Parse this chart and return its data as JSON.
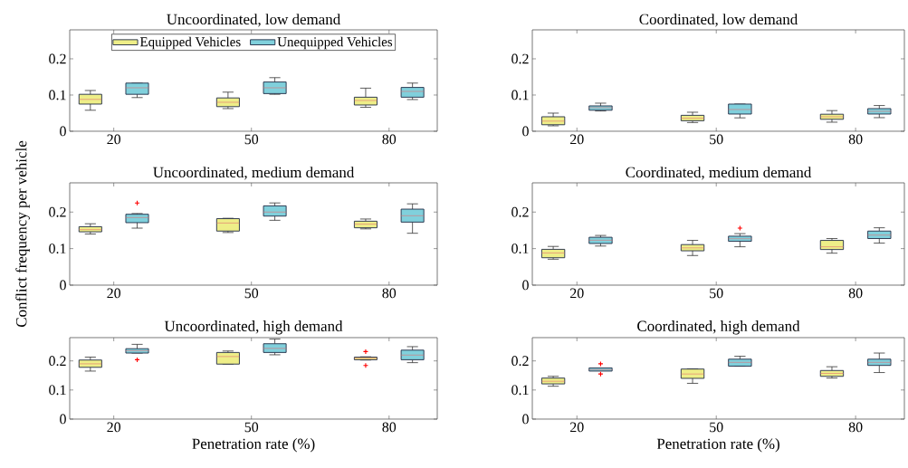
{
  "chart_data": [
    {
      "type": "box",
      "title": "Uncoordinated, low demand",
      "categories": [
        "20",
        "50",
        "80"
      ],
      "ylim": [
        0,
        0.28
      ],
      "yticks": [
        0,
        0.1,
        0.2
      ],
      "legend": "top",
      "series": [
        {
          "name": "Equipped Vehicles",
          "color": "#eeee88",
          "boxes": [
            {
              "low": 0.058,
              "q1": 0.075,
              "median": 0.088,
              "q3": 0.102,
              "high": 0.1125
            },
            {
              "low": 0.0625,
              "q1": 0.068,
              "median": 0.08,
              "q3": 0.092,
              "high": 0.108
            },
            {
              "low": 0.066,
              "q1": 0.0725,
              "median": 0.085,
              "q3": 0.094,
              "high": 0.119
            }
          ]
        },
        {
          "name": "Unequipped Vehicles",
          "color": "#80d0dc",
          "boxes": [
            {
              "low": 0.093,
              "q1": 0.102,
              "median": 0.12,
              "q3": 0.133,
              "high": 0.133
            },
            {
              "low": 0.102,
              "q1": 0.104,
              "median": 0.12,
              "q3": 0.136,
              "high": 0.148
            },
            {
              "low": 0.0875,
              "q1": 0.094,
              "median": 0.11,
              "q3": 0.121,
              "high": 0.133
            }
          ]
        }
      ]
    },
    {
      "type": "box",
      "title": "Coordinated, low demand",
      "categories": [
        "20",
        "50",
        "80"
      ],
      "ylim": [
        0,
        0.28
      ],
      "yticks": [
        0,
        0.1,
        0.2
      ],
      "series": [
        {
          "color": "#eeee88",
          "boxes": [
            {
              "low": 0.015,
              "q1": 0.018,
              "median": 0.028,
              "q3": 0.04,
              "high": 0.05
            },
            {
              "low": 0.024,
              "q1": 0.029,
              "median": 0.036,
              "q3": 0.044,
              "high": 0.0525
            },
            {
              "low": 0.025,
              "q1": 0.033,
              "median": 0.04,
              "q3": 0.047,
              "high": 0.057
            }
          ]
        },
        {
          "color": "#80d0dc",
          "boxes": [
            {
              "low": 0.056,
              "q1": 0.058,
              "median": 0.065,
              "q3": 0.07,
              "high": 0.0775
            },
            {
              "low": 0.037,
              "q1": 0.0475,
              "median": 0.06,
              "q3": 0.075,
              "high": 0.075
            },
            {
              "low": 0.0375,
              "q1": 0.0475,
              "median": 0.055,
              "q3": 0.0625,
              "high": 0.071
            }
          ]
        }
      ]
    },
    {
      "type": "box",
      "title": "Uncoordinated, medium demand",
      "categories": [
        "20",
        "50",
        "80"
      ],
      "ylim": [
        0,
        0.28
      ],
      "yticks": [
        0,
        0.1,
        0.2
      ],
      "ylabel": "Conflict frequency per vehicle",
      "series": [
        {
          "color": "#eeee88",
          "boxes": [
            {
              "low": 0.14,
              "q1": 0.146,
              "median": 0.152,
              "q3": 0.16,
              "high": 0.168
            },
            {
              "low": 0.144,
              "q1": 0.148,
              "median": 0.17,
              "q3": 0.182,
              "high": 0.183
            },
            {
              "low": 0.154,
              "q1": 0.157,
              "median": 0.167,
              "q3": 0.175,
              "high": 0.181
            }
          ]
        },
        {
          "color": "#80d0dc",
          "boxes": [
            {
              "low": 0.156,
              "q1": 0.171,
              "median": 0.185,
              "q3": 0.194,
              "high": 0.196,
              "outliers": [
                0.225
              ]
            },
            {
              "low": 0.1775,
              "q1": 0.189,
              "median": 0.2,
              "q3": 0.217,
              "high": 0.225
            },
            {
              "low": 0.142,
              "q1": 0.1725,
              "median": 0.19,
              "q3": 0.208,
              "high": 0.2225
            }
          ]
        }
      ]
    },
    {
      "type": "box",
      "title": "Coordinated, medium demand",
      "categories": [
        "20",
        "50",
        "80"
      ],
      "ylim": [
        0,
        0.28
      ],
      "yticks": [
        0,
        0.1,
        0.2
      ],
      "series": [
        {
          "color": "#eeee88",
          "boxes": [
            {
              "low": 0.071,
              "q1": 0.075,
              "median": 0.088,
              "q3": 0.098,
              "high": 0.106
            },
            {
              "low": 0.081,
              "q1": 0.094,
              "median": 0.102,
              "q3": 0.111,
              "high": 0.1225
            },
            {
              "low": 0.0875,
              "q1": 0.0975,
              "median": 0.105,
              "q3": 0.1225,
              "high": 0.1275
            }
          ]
        },
        {
          "color": "#80d0dc",
          "boxes": [
            {
              "low": 0.107,
              "q1": 0.114,
              "median": 0.123,
              "q3": 0.131,
              "high": 0.136
            },
            {
              "low": 0.105,
              "q1": 0.12,
              "median": 0.127,
              "q3": 0.134,
              "high": 0.141,
              "outliers": [
                0.156
              ]
            },
            {
              "low": 0.115,
              "q1": 0.1275,
              "median": 0.137,
              "q3": 0.148,
              "high": 0.157
            }
          ]
        }
      ]
    },
    {
      "type": "box",
      "title": "Uncoordinated, high demand",
      "categories": [
        "20",
        "50",
        "80"
      ],
      "ylim": [
        0,
        0.28
      ],
      "yticks": [
        0,
        0.1,
        0.2
      ],
      "xlabel": "Penetration rate (%)",
      "series": [
        {
          "color": "#eeee88",
          "boxes": [
            {
              "low": 0.165,
              "q1": 0.178,
              "median": 0.19,
              "q3": 0.203,
              "high": 0.213
            },
            {
              "low": 0.189,
              "q1": 0.189,
              "median": 0.215,
              "q3": 0.229,
              "high": 0.234
            },
            {
              "low": 0.203,
              "q1": 0.204,
              "median": 0.209,
              "q3": 0.213,
              "high": 0.214,
              "outliers": [
                0.232,
                0.1845
              ]
            }
          ]
        },
        {
          "color": "#80d0dc",
          "boxes": [
            {
              "low": 0.227,
              "q1": 0.227,
              "median": 0.235,
              "q3": 0.242,
              "high": 0.257,
              "outliers": [
                0.204
              ]
            },
            {
              "low": 0.221,
              "q1": 0.229,
              "median": 0.243,
              "q3": 0.259,
              "high": 0.275
            },
            {
              "low": 0.194,
              "q1": 0.204,
              "median": 0.22,
              "q3": 0.237,
              "high": 0.249
            }
          ]
        }
      ]
    },
    {
      "type": "box",
      "title": "Coordinated, high demand",
      "categories": [
        "20",
        "50",
        "80"
      ],
      "ylim": [
        0,
        0.28
      ],
      "yticks": [
        0,
        0.1,
        0.2
      ],
      "xlabel": "Penetration rate (%)",
      "series": [
        {
          "color": "#eeee88",
          "boxes": [
            {
              "low": 0.113,
              "q1": 0.121,
              "median": 0.13,
              "q3": 0.141,
              "high": 0.147
            },
            {
              "low": 0.123,
              "q1": 0.14,
              "median": 0.155,
              "q3": 0.172,
              "high": 0.173
            },
            {
              "low": 0.141,
              "q1": 0.147,
              "median": 0.157,
              "q3": 0.167,
              "high": 0.18
            }
          ]
        },
        {
          "color": "#80d0dc",
          "boxes": [
            {
              "low": 0.165,
              "q1": 0.165,
              "median": 0.17,
              "q3": 0.176,
              "high": 0.176,
              "outliers": [
                0.19,
                0.155
              ]
            },
            {
              "low": 0.182,
              "q1": 0.182,
              "median": 0.195,
              "q3": 0.206,
              "high": 0.216
            },
            {
              "low": 0.16,
              "q1": 0.1845,
              "median": 0.195,
              "q3": 0.206,
              "high": 0.227
            }
          ]
        }
      ]
    }
  ]
}
